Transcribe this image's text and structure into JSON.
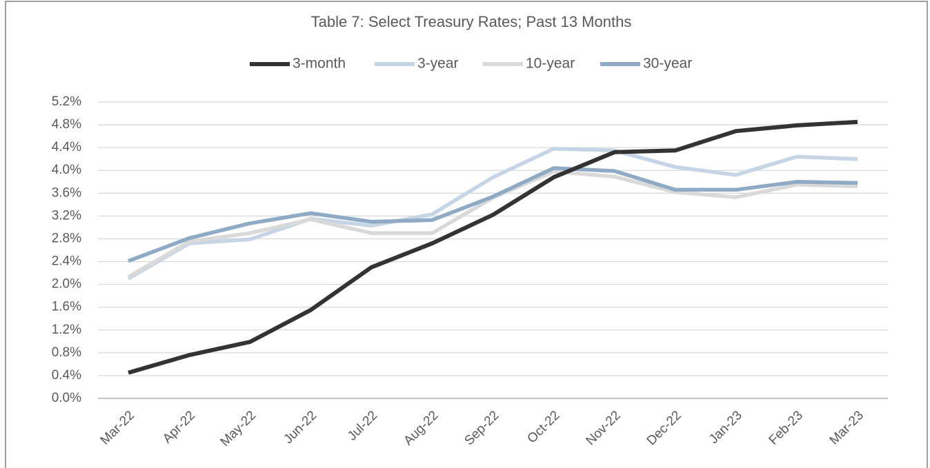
{
  "chart_data": {
    "type": "line",
    "title": "Table 7: Select Treasury Rates; Past 13 Months",
    "categories": [
      "Mar-22",
      "Apr-22",
      "May-22",
      "Jun-22",
      "Jul-22",
      "Aug-22",
      "Sep-22",
      "Oct-22",
      "Nov-22",
      "Dec-22",
      "Jan-23",
      "Feb-23",
      "Mar-23"
    ],
    "series": [
      {
        "name": "3-month",
        "color": "#333333",
        "values": [
          0.45,
          0.76,
          0.99,
          1.55,
          2.3,
          2.72,
          3.22,
          3.88,
          4.32,
          4.35,
          4.69,
          4.79,
          4.85
        ]
      },
      {
        "name": "3-year",
        "color": "#c5d5e6",
        "values": [
          2.1,
          2.72,
          2.79,
          3.15,
          3.03,
          3.23,
          3.88,
          4.38,
          4.35,
          4.06,
          3.92,
          4.24,
          4.2
        ]
      },
      {
        "name": "10-year",
        "color": "#d9d9d9",
        "values": [
          2.13,
          2.75,
          2.9,
          3.14,
          2.9,
          2.9,
          3.52,
          3.98,
          3.89,
          3.62,
          3.53,
          3.75,
          3.72
        ]
      },
      {
        "name": "30-year",
        "color": "#8eaac4",
        "values": [
          2.41,
          2.81,
          3.07,
          3.25,
          3.1,
          3.13,
          3.54,
          4.04,
          3.99,
          3.66,
          3.66,
          3.8,
          3.78
        ]
      }
    ],
    "ylim": [
      0,
      5.2
    ],
    "yticks": [
      {
        "value": 0,
        "label": "0.0%"
      },
      {
        "value": 0.4,
        "label": "0.4%"
      },
      {
        "value": 0.8,
        "label": "0.8%"
      },
      {
        "value": 1.2,
        "label": "1.2%"
      },
      {
        "value": 1.6,
        "label": "1.6%"
      },
      {
        "value": 2.0,
        "label": "2.0%"
      },
      {
        "value": 2.4,
        "label": "2.4%"
      },
      {
        "value": 2.8,
        "label": "2.8%"
      },
      {
        "value": 3.2,
        "label": "3.2%"
      },
      {
        "value": 3.6,
        "label": "3.6%"
      },
      {
        "value": 4.0,
        "label": "4.0%"
      },
      {
        "value": 4.4,
        "label": "4.4%"
      },
      {
        "value": 4.8,
        "label": "4.8%"
      },
      {
        "value": 5.2,
        "label": "5.2%"
      }
    ],
    "grid": true,
    "legend": "top"
  }
}
